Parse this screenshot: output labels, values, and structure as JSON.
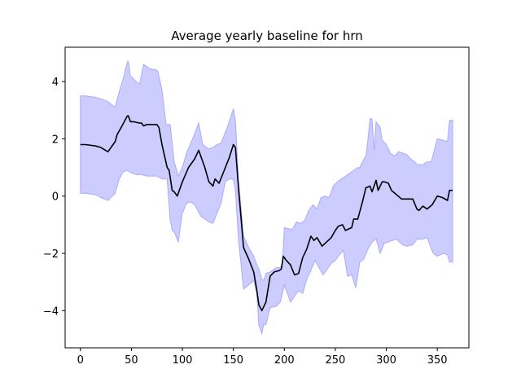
{
  "chart_data": {
    "type": "line",
    "title": "Average yearly baseline for hrn",
    "xlabel": "",
    "ylabel": "",
    "xlim": [
      -15,
      381
    ],
    "ylim": [
      -5.3,
      5.2
    ],
    "xticks": [
      0,
      50,
      100,
      150,
      200,
      250,
      300,
      350
    ],
    "yticks": [
      -4,
      -2,
      0,
      2,
      4
    ],
    "ytick_labels": [
      "−4",
      "−2",
      "0",
      "2",
      "4"
    ],
    "grid": false,
    "colors": {
      "line": "#000000",
      "band_fill": "#ccccff",
      "band_edge": "#aaaaff"
    },
    "series": [
      {
        "role": "mean",
        "x": [
          0,
          5,
          15,
          20,
          27,
          34,
          36,
          40,
          46,
          47,
          49,
          52,
          58,
          60,
          62,
          65,
          70,
          75,
          77,
          80,
          85,
          87,
          90,
          92,
          95,
          100,
          106,
          112,
          116,
          122,
          126,
          130,
          132,
          136,
          140,
          146,
          150,
          152,
          155,
          160,
          165,
          170,
          173,
          175,
          178,
          180,
          182,
          186,
          190,
          195,
          197,
          199,
          202,
          206,
          210,
          214,
          218,
          222,
          226,
          229,
          232,
          237,
          240,
          246,
          250,
          253,
          257,
          260,
          266,
          268,
          272,
          277,
          280,
          281,
          284,
          286,
          290,
          292,
          296,
          298,
          302,
          305,
          310,
          315,
          320,
          326,
          330,
          332,
          336,
          340,
          345,
          350,
          355,
          360,
          362,
          365
        ],
        "y": [
          1.8,
          1.8,
          1.75,
          1.7,
          1.55,
          1.9,
          2.15,
          2.4,
          2.8,
          2.8,
          2.6,
          2.6,
          2.55,
          2.55,
          2.45,
          2.5,
          2.5,
          2.5,
          2.4,
          1.8,
          1.0,
          0.9,
          0.2,
          0.15,
          0.0,
          0.5,
          1.0,
          1.3,
          1.6,
          1.0,
          0.5,
          0.35,
          0.6,
          0.45,
          0.8,
          1.35,
          1.8,
          1.7,
          0.3,
          -1.8,
          -2.2,
          -2.65,
          -3.3,
          -3.8,
          -4.0,
          -3.85,
          -3.7,
          -2.8,
          -2.65,
          -2.6,
          -2.55,
          -2.1,
          -2.25,
          -2.4,
          -2.75,
          -2.7,
          -2.15,
          -1.85,
          -1.4,
          -1.55,
          -1.45,
          -1.75,
          -1.65,
          -1.45,
          -1.2,
          -1.05,
          -1.0,
          -1.2,
          -1.1,
          -0.8,
          -0.8,
          -0.15,
          0.3,
          0.3,
          0.35,
          0.15,
          0.55,
          0.2,
          0.5,
          0.5,
          0.45,
          0.2,
          0.05,
          -0.1,
          -0.1,
          -0.1,
          -0.45,
          -0.5,
          -0.35,
          -0.45,
          -0.3,
          0.0,
          -0.05,
          -0.15,
          0.2,
          0.2
        ]
      },
      {
        "role": "band_upper",
        "x": [
          0,
          5,
          15,
          20,
          27,
          34,
          38,
          42,
          46,
          47,
          49,
          52,
          58,
          62,
          68,
          75,
          76,
          80,
          84,
          88,
          92,
          96,
          100,
          104,
          110,
          116,
          120,
          126,
          130,
          134,
          138,
          144,
          150,
          152,
          155,
          160,
          165,
          170,
          173,
          175,
          178,
          180,
          182,
          186,
          192,
          195,
          198,
          200,
          206,
          208,
          212,
          216,
          220,
          224,
          228,
          232,
          236,
          240,
          244,
          248,
          252,
          256,
          260,
          266,
          270,
          272,
          274,
          278,
          280,
          282,
          284,
          286,
          288,
          290,
          294,
          296,
          300,
          304,
          308,
          312,
          316,
          320,
          324,
          328,
          330,
          336,
          340,
          344,
          350,
          356,
          360,
          362,
          365
        ],
        "y": [
          3.5,
          3.5,
          3.45,
          3.4,
          3.3,
          3.1,
          3.65,
          4.1,
          4.7,
          4.7,
          4.2,
          4.1,
          3.9,
          4.6,
          4.45,
          4.4,
          4.35,
          3.7,
          2.5,
          2.5,
          1.2,
          0.7,
          1.0,
          1.5,
          2.0,
          2.55,
          1.8,
          1.65,
          1.7,
          1.8,
          1.85,
          2.4,
          3.05,
          2.65,
          0.6,
          -1.4,
          -1.8,
          -2.1,
          -2.4,
          -2.55,
          -2.9,
          -2.95,
          -2.7,
          -2.65,
          -2.5,
          -2.5,
          -2.45,
          -1.1,
          -1.15,
          -1.15,
          -0.9,
          -0.95,
          -0.85,
          -0.5,
          -0.3,
          -0.45,
          -0.05,
          0.0,
          -0.05,
          0.35,
          0.5,
          0.6,
          0.7,
          0.85,
          0.95,
          1.0,
          1.0,
          1.3,
          1.4,
          2.0,
          2.7,
          2.7,
          1.6,
          2.6,
          2.4,
          1.95,
          1.8,
          1.5,
          1.4,
          1.55,
          1.5,
          1.45,
          1.3,
          1.2,
          1.1,
          1.1,
          1.2,
          1.2,
          2.0,
          1.95,
          1.9,
          2.65,
          2.65
        ]
      },
      {
        "role": "band_lower",
        "x": [
          0,
          5,
          15,
          20,
          27,
          34,
          38,
          42,
          46,
          50,
          55,
          60,
          65,
          70,
          75,
          80,
          85,
          88,
          90,
          92,
          96,
          100,
          104,
          108,
          112,
          118,
          122,
          126,
          130,
          134,
          138,
          142,
          146,
          150,
          152,
          155,
          160,
          165,
          170,
          173,
          175,
          178,
          180,
          182,
          186,
          192,
          196,
          200,
          206,
          210,
          214,
          218,
          222,
          226,
          230,
          234,
          238,
          242,
          246,
          250,
          254,
          258,
          262,
          266,
          270,
          274,
          278,
          282,
          286,
          290,
          294,
          298,
          302,
          306,
          310,
          316,
          320,
          326,
          330,
          336,
          340,
          346,
          350,
          356,
          360,
          362,
          365
        ],
        "y": [
          0.1,
          0.1,
          0.05,
          -0.05,
          -0.15,
          0.1,
          0.6,
          0.85,
          0.9,
          0.8,
          0.75,
          0.75,
          0.7,
          0.7,
          0.7,
          0.6,
          0.6,
          -0.8,
          -1.2,
          -1.25,
          -1.6,
          -0.6,
          -0.25,
          -0.2,
          -0.3,
          -0.7,
          -0.8,
          -0.9,
          -0.95,
          -0.6,
          -0.25,
          0.5,
          0.6,
          0.6,
          0.2,
          -1.5,
          -3.25,
          -3.1,
          -2.95,
          -3.4,
          -4.5,
          -4.8,
          -4.45,
          -4.5,
          -3.9,
          -3.85,
          -3.7,
          -3.1,
          -3.7,
          -3.5,
          -3.3,
          -3.4,
          -2.9,
          -2.6,
          -2.25,
          -2.5,
          -2.75,
          -2.55,
          -2.35,
          -2.25,
          -2.05,
          -1.9,
          -2.8,
          -2.75,
          -3.2,
          -2.3,
          -2.2,
          -1.85,
          -1.6,
          -1.5,
          -2.0,
          -1.65,
          -1.6,
          -1.55,
          -1.5,
          -1.7,
          -1.75,
          -1.7,
          -1.5,
          -1.5,
          -1.45,
          -2.0,
          -2.1,
          -2.0,
          -2.05,
          -2.3,
          -2.3
        ]
      }
    ]
  }
}
